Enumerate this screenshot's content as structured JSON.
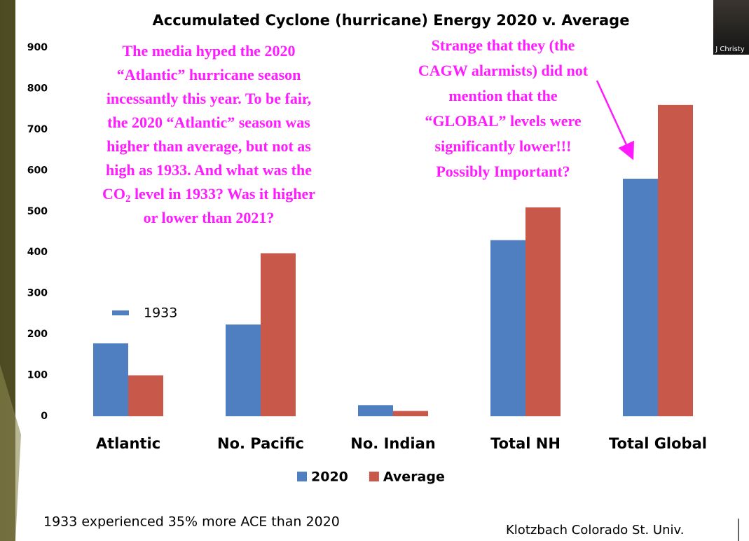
{
  "chart_data": {
    "type": "bar",
    "title": "Accumulated Cyclone (hurricane) Energy 2020 v. Average",
    "categories": [
      "Atlantic",
      "No. Pacific",
      "No. Indian",
      "Total NH",
      "Total Global"
    ],
    "series": [
      {
        "name": "2020",
        "color": "#4f7fc0",
        "values": [
          178,
          224,
          27,
          430,
          580
        ]
      },
      {
        "name": "Average",
        "color": "#c8584a",
        "values": [
          100,
          398,
          13,
          510,
          760
        ]
      }
    ],
    "ylim": [
      0,
      900
    ],
    "yticks": [
      0,
      100,
      200,
      300,
      400,
      500,
      600,
      700,
      800,
      900
    ],
    "grid": false,
    "legend": "bottom",
    "annotations": {
      "left": {
        "lines": [
          "The media hyped the 2020",
          "“Atlantic” hurricane season",
          "incessantly this year. To be fair,",
          "the 2020 “Atlantic” season was",
          "higher than average, but not as",
          "high as 1933. And what was the"
        ],
        "co2_line": [
          "CO",
          "2",
          " level in 1933? Was it higher"
        ],
        "last_line": "or lower than 2021?"
      },
      "right": {
        "lines": [
          "Strange that they (the",
          "CAGW alarmists) did not",
          "mention that the",
          "“GLOBAL” levels were",
          "significantly lower!!!",
          "Possibly Important?"
        ]
      },
      "marker_label": "1933",
      "footnote": "1933 experienced 35% more ACE than 2020",
      "source": "Klotzbach Colorado St. Univ."
    }
  },
  "overlay": {
    "webcam_name": "J Christy"
  }
}
